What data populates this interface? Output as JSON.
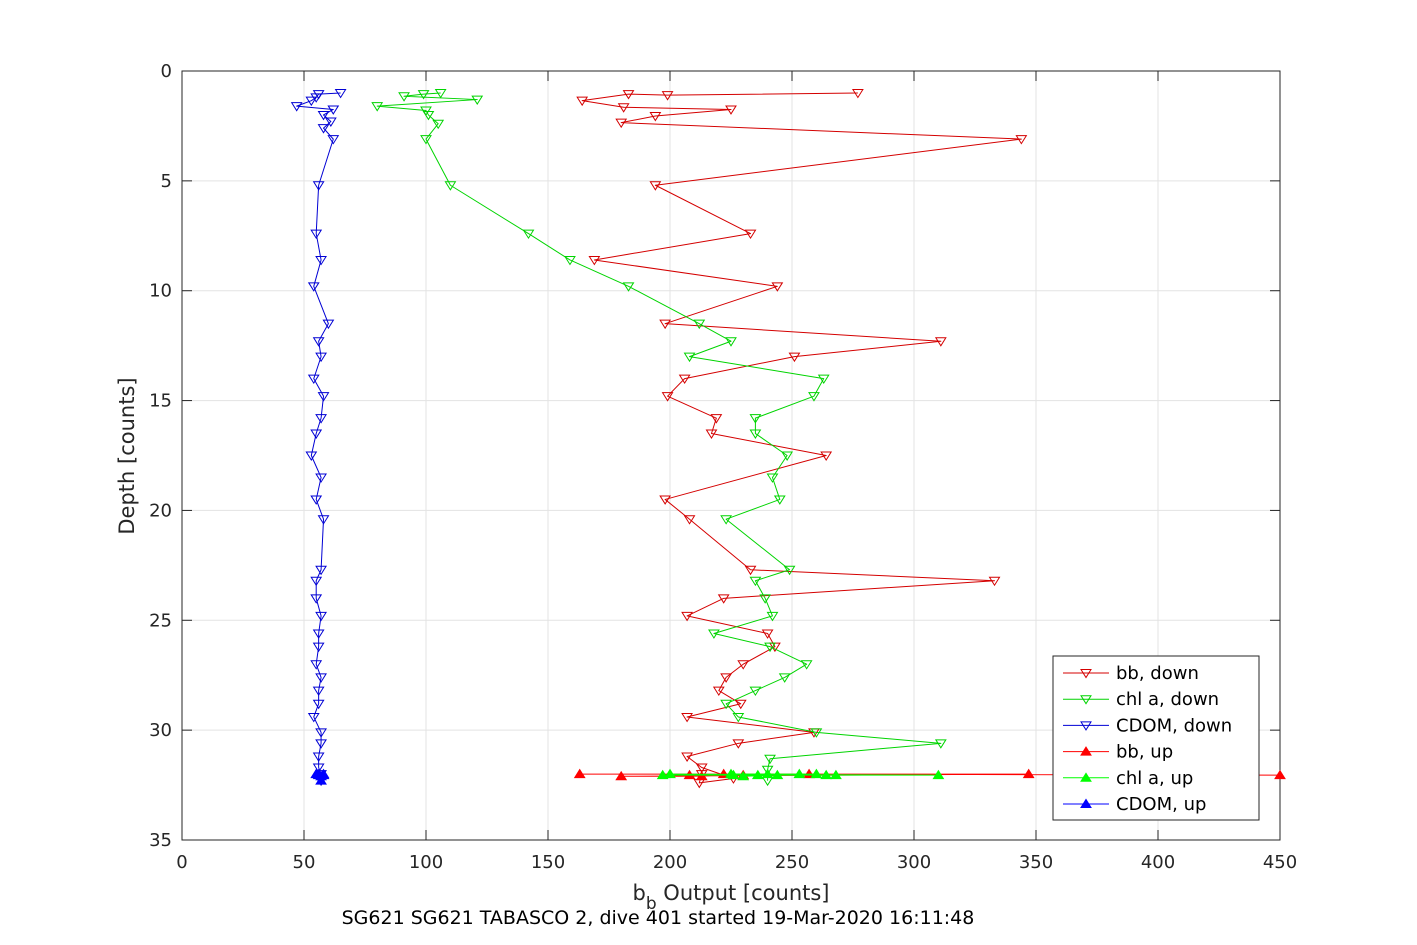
{
  "chart_data": {
    "type": "line",
    "xlabel_main": "b",
    "xlabel_sub": "b",
    "xlabel_rest": " Output [counts]",
    "ylabel": "Depth [counts]",
    "caption": "SG621 SG621 TABASCO 2, dive 401 started 19-Mar-2020 16:11:48",
    "xlim": [
      0,
      450
    ],
    "ylim": [
      0,
      35
    ],
    "y_reversed": true,
    "xticks": [
      "0",
      "50",
      "100",
      "150",
      "200",
      "250",
      "300",
      "350",
      "400",
      "450"
    ],
    "yticks": [
      "0",
      "5",
      "10",
      "15",
      "20",
      "25",
      "30",
      "35"
    ],
    "grid": true,
    "legend_position": "bottom-right",
    "series": [
      {
        "name": "bb, down",
        "color": "#d40000",
        "marker": "triangle-down",
        "points": [
          [
            277,
            1.0
          ],
          [
            199,
            1.1
          ],
          [
            183,
            1.05
          ],
          [
            164,
            1.35
          ],
          [
            181,
            1.65
          ],
          [
            225,
            1.75
          ],
          [
            194,
            2.05
          ],
          [
            180,
            2.35
          ],
          [
            344,
            3.1
          ],
          [
            194,
            5.2
          ],
          [
            233,
            7.4
          ],
          [
            169,
            8.6
          ],
          [
            244,
            9.8
          ],
          [
            198,
            11.5
          ],
          [
            311,
            12.3
          ],
          [
            251,
            13.0
          ],
          [
            206,
            14.0
          ],
          [
            199,
            14.8
          ],
          [
            219,
            15.8
          ],
          [
            217,
            16.5
          ],
          [
            264,
            17.5
          ],
          [
            198,
            19.5
          ],
          [
            208,
            20.4
          ],
          [
            233,
            22.7
          ],
          [
            333,
            23.2
          ],
          [
            222,
            24.0
          ],
          [
            207,
            24.8
          ],
          [
            240,
            25.6
          ],
          [
            243,
            26.2
          ],
          [
            230,
            27.0
          ],
          [
            223,
            27.6
          ],
          [
            220,
            28.2
          ],
          [
            229,
            28.8
          ],
          [
            207,
            29.4
          ],
          [
            259,
            30.1
          ],
          [
            228,
            30.6
          ],
          [
            207,
            31.2
          ],
          [
            213,
            31.7
          ],
          [
            226,
            32.2
          ],
          [
            212,
            32.4
          ],
          [
            213,
            32.0
          ]
        ]
      },
      {
        "name": "chl a, down",
        "color": "#00d400",
        "marker": "triangle-down",
        "points": [
          [
            106,
            1.0
          ],
          [
            99,
            1.05
          ],
          [
            91,
            1.15
          ],
          [
            121,
            1.3
          ],
          [
            80,
            1.6
          ],
          [
            100,
            1.8
          ],
          [
            101,
            2.0
          ],
          [
            105,
            2.4
          ],
          [
            100,
            3.1
          ],
          [
            110,
            5.2
          ],
          [
            142,
            7.4
          ],
          [
            159,
            8.6
          ],
          [
            183,
            9.8
          ],
          [
            212,
            11.5
          ],
          [
            225,
            12.3
          ],
          [
            208,
            13.0
          ],
          [
            263,
            14.0
          ],
          [
            259,
            14.8
          ],
          [
            235,
            15.8
          ],
          [
            235,
            16.5
          ],
          [
            248,
            17.5
          ],
          [
            242,
            18.5
          ],
          [
            245,
            19.5
          ],
          [
            223,
            20.4
          ],
          [
            249,
            22.7
          ],
          [
            235,
            23.2
          ],
          [
            239,
            24.0
          ],
          [
            242,
            24.8
          ],
          [
            218,
            25.6
          ],
          [
            241,
            26.2
          ],
          [
            256,
            27.0
          ],
          [
            247,
            27.6
          ],
          [
            235,
            28.2
          ],
          [
            223,
            28.8
          ],
          [
            228,
            29.4
          ],
          [
            260,
            30.1
          ],
          [
            311,
            30.6
          ],
          [
            241,
            31.3
          ],
          [
            240,
            31.8
          ],
          [
            240,
            32.3
          ]
        ]
      },
      {
        "name": "CDOM, down",
        "color": "#0000d4",
        "marker": "triangle-down",
        "points": [
          [
            65,
            1.0
          ],
          [
            56,
            1.05
          ],
          [
            55,
            1.2
          ],
          [
            53,
            1.35
          ],
          [
            47,
            1.6
          ],
          [
            62,
            1.75
          ],
          [
            58,
            2.0
          ],
          [
            61,
            2.3
          ],
          [
            58,
            2.6
          ],
          [
            62,
            3.1
          ],
          [
            56,
            5.2
          ],
          [
            55,
            7.4
          ],
          [
            57,
            8.6
          ],
          [
            54,
            9.8
          ],
          [
            60,
            11.5
          ],
          [
            56,
            12.3
          ],
          [
            57,
            13.0
          ],
          [
            54,
            14.0
          ],
          [
            58,
            14.8
          ],
          [
            57,
            15.8
          ],
          [
            55,
            16.5
          ],
          [
            53,
            17.5
          ],
          [
            57,
            18.5
          ],
          [
            55,
            19.5
          ],
          [
            58,
            20.4
          ],
          [
            57,
            22.7
          ],
          [
            55,
            23.2
          ],
          [
            55,
            24.0
          ],
          [
            57,
            24.8
          ],
          [
            56,
            25.6
          ],
          [
            56,
            26.2
          ],
          [
            55,
            27.0
          ],
          [
            57,
            27.6
          ],
          [
            56,
            28.2
          ],
          [
            56,
            28.8
          ],
          [
            54,
            29.4
          ],
          [
            57,
            30.1
          ],
          [
            57,
            30.6
          ],
          [
            56,
            31.2
          ],
          [
            56,
            31.7
          ],
          [
            57,
            32.0
          ],
          [
            57,
            32.3
          ]
        ]
      },
      {
        "name": "bb, up",
        "color": "#ff0000",
        "marker": "triangle-up",
        "points": [
          [
            163,
            32.0
          ],
          [
            347,
            32.0
          ],
          [
            180,
            32.1
          ],
          [
            213,
            32.1
          ],
          [
            230,
            32.05
          ],
          [
            208,
            32.05
          ],
          [
            222,
            32.0
          ],
          [
            257,
            32.0
          ],
          [
            450,
            32.05
          ]
        ]
      },
      {
        "name": "chl a, up",
        "color": "#00ff00",
        "marker": "triangle-up",
        "points": [
          [
            197,
            32.05
          ],
          [
            310,
            32.05
          ],
          [
            200,
            32.0
          ],
          [
            264,
            32.05
          ],
          [
            225,
            32.0
          ],
          [
            260,
            32.0
          ],
          [
            236,
            32.05
          ],
          [
            268,
            32.05
          ],
          [
            240,
            32.0
          ],
          [
            244,
            32.05
          ],
          [
            230,
            32.1
          ],
          [
            253,
            32.0
          ],
          [
            226,
            32.05
          ]
        ]
      },
      {
        "name": "CDOM, up",
        "color": "#0000ff",
        "marker": "triangle-up",
        "points": [
          [
            56,
            32.0
          ],
          [
            58,
            32.05
          ],
          [
            55,
            32.0
          ],
          [
            57,
            32.1
          ],
          [
            56,
            32.05
          ],
          [
            58,
            32.0
          ],
          [
            57,
            32.3
          ]
        ]
      }
    ]
  }
}
